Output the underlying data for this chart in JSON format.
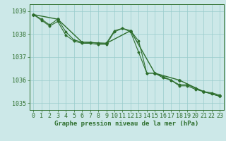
{
  "background_color": "#cce8e8",
  "grid_color": "#99cccc",
  "line_color": "#2d6e2d",
  "title": "Graphe pression niveau de la mer (hPa)",
  "xlim": [
    -0.5,
    23.5
  ],
  "ylim": [
    1034.7,
    1039.3
  ],
  "yticks": [
    1035,
    1036,
    1037,
    1038,
    1039
  ],
  "xticks": [
    0,
    1,
    2,
    3,
    4,
    5,
    6,
    7,
    8,
    9,
    10,
    11,
    12,
    13,
    14,
    15,
    16,
    17,
    18,
    19,
    20,
    21,
    22,
    23
  ],
  "series1": {
    "x": [
      0,
      1,
      2,
      3,
      4,
      5,
      6,
      7,
      8,
      9,
      10,
      11,
      12,
      13,
      14,
      15,
      16,
      17,
      18,
      19,
      20,
      21,
      22,
      23
    ],
    "y": [
      1038.85,
      1038.65,
      1038.4,
      1038.65,
      1038.1,
      1037.75,
      1037.65,
      1037.65,
      1037.6,
      1037.6,
      1038.15,
      1038.25,
      1038.15,
      1037.7,
      1036.3,
      1036.3,
      1036.1,
      1036.0,
      1035.8,
      1035.8,
      1035.65,
      1035.5,
      1035.45,
      1035.35
    ]
  },
  "series2": {
    "x": [
      0,
      1,
      2,
      3,
      4,
      5,
      6,
      7,
      8,
      9,
      10,
      11,
      12,
      13,
      14,
      15,
      16,
      17,
      18,
      19,
      20,
      21,
      22,
      23
    ],
    "y": [
      1038.85,
      1038.6,
      1038.35,
      1038.55,
      1037.95,
      1037.7,
      1037.6,
      1037.6,
      1037.55,
      1037.55,
      1038.1,
      1038.25,
      1038.1,
      1037.2,
      1036.3,
      1036.3,
      1036.15,
      1036.0,
      1035.75,
      1035.75,
      1035.6,
      1035.5,
      1035.4,
      1035.3
    ]
  },
  "series3": {
    "x": [
      0,
      3,
      6,
      9,
      12,
      15,
      18,
      21,
      23
    ],
    "y": [
      1038.85,
      1038.65,
      1037.65,
      1037.6,
      1038.15,
      1036.3,
      1036.0,
      1035.5,
      1035.3
    ]
  },
  "tick_fontsize": 6,
  "title_fontsize": 6.5
}
